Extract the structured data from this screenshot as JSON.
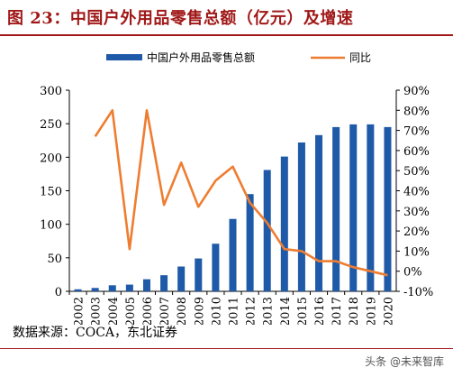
{
  "title": "图 23：中国户外用品零售总额（亿元）及增速",
  "source": "数据来源：COCA，东北证券",
  "watermark": "头条 @未来智库",
  "colors": {
    "bar": "#1f5aa8",
    "line": "#ee7d31",
    "title": "#a01818"
  },
  "chart_data": {
    "type": "bar+line",
    "categories": [
      "2002",
      "2003",
      "2004",
      "2005",
      "2006",
      "2007",
      "2008",
      "2009",
      "2010",
      "2011",
      "2012",
      "2013",
      "2014",
      "2015",
      "2016",
      "2017",
      "2018",
      "2019",
      "2020"
    ],
    "series": [
      {
        "name": "中国户外用品零售总额",
        "type": "bar",
        "axis": "left",
        "values": [
          3,
          5,
          9,
          10,
          18,
          24,
          37,
          49,
          71,
          108,
          145,
          181,
          201,
          222,
          233,
          245,
          249,
          249,
          245
        ]
      },
      {
        "name": "同比",
        "type": "line",
        "axis": "right",
        "values": [
          null,
          67,
          80,
          11,
          80,
          33,
          54,
          32,
          45,
          52,
          34,
          24,
          11,
          10,
          5,
          5,
          2,
          0,
          -2
        ]
      }
    ],
    "ylim_left": [
      0,
      300
    ],
    "yticks_left": [
      0,
      50,
      100,
      150,
      200,
      250,
      300
    ],
    "ylim_right": [
      -10,
      90
    ],
    "yticks_right": [
      "-10%",
      "0%",
      "10%",
      "20%",
      "30%",
      "40%",
      "50%",
      "60%",
      "70%",
      "80%",
      "90%"
    ],
    "legend_position": "top"
  }
}
